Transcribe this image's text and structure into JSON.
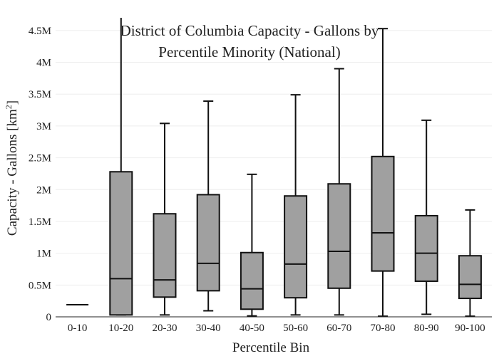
{
  "chart_data": {
    "type": "box",
    "title_lines": [
      "District of Columbia Capacity - Gallons by",
      "Percentile Minority (National)"
    ],
    "xlabel": "Percentile Bin",
    "ylabel": {
      "main": "Capacity - Gallons  [km",
      "superscript": "2",
      "end": "]"
    },
    "ylim": [
      0,
      4700000
    ],
    "yticks": [
      0,
      500000,
      1000000,
      1500000,
      2000000,
      2500000,
      3000000,
      3500000,
      4000000,
      4500000
    ],
    "ytick_labels": [
      "0",
      "0.5M",
      "1M",
      "1.5M",
      "2M",
      "2.5M",
      "3M",
      "3.5M",
      "4M",
      "4.5M"
    ],
    "grid": true,
    "categories": [
      "0-10",
      "10-20",
      "20-30",
      "30-40",
      "40-50",
      "50-60",
      "60-70",
      "70-80",
      "80-90",
      "90-100"
    ],
    "boxes": [
      {
        "min": 190000,
        "q1": 190000,
        "median": 190000,
        "q3": 190000,
        "max": 190000
      },
      {
        "min": 30000,
        "q1": 30000,
        "median": 600000,
        "q3": 2280000,
        "max": 4900000
      },
      {
        "min": 30000,
        "q1": 310000,
        "median": 580000,
        "q3": 1620000,
        "max": 3040000
      },
      {
        "min": 95000,
        "q1": 410000,
        "median": 840000,
        "q3": 1920000,
        "max": 3390000
      },
      {
        "min": 15000,
        "q1": 120000,
        "median": 440000,
        "q3": 1010000,
        "max": 2240000
      },
      {
        "min": 30000,
        "q1": 300000,
        "median": 830000,
        "q3": 1900000,
        "max": 3490000
      },
      {
        "min": 30000,
        "q1": 450000,
        "median": 1030000,
        "q3": 2090000,
        "max": 3900000
      },
      {
        "min": 10000,
        "q1": 720000,
        "median": 1320000,
        "q3": 2520000,
        "max": 4530000
      },
      {
        "min": 40000,
        "q1": 560000,
        "median": 1000000,
        "q3": 1590000,
        "max": 3090000
      },
      {
        "min": 10000,
        "q1": 290000,
        "median": 510000,
        "q3": 960000,
        "max": 1680000
      }
    ],
    "box_fill": "#a0a0a0",
    "line_color": "#111111",
    "grid_color": "#eeeeee"
  }
}
